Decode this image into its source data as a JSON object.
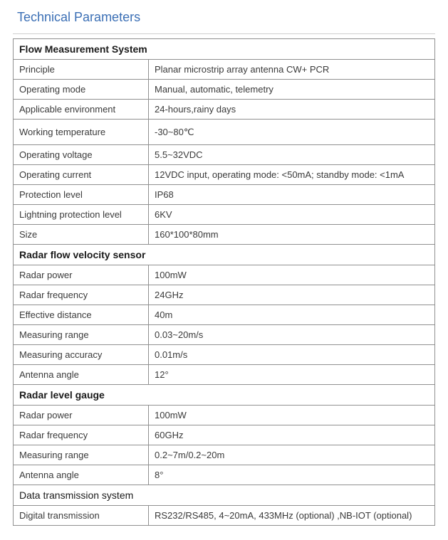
{
  "title": "Technical Parameters",
  "sections": [
    {
      "header": "Flow Measurement System",
      "rows": [
        {
          "label": "Principle",
          "value": "Planar microstrip array antenna CW+ PCR"
        },
        {
          "label": "Operating mode",
          "value": "Manual, automatic, telemetry"
        },
        {
          "label": "Applicable environment",
          "value": "24-hours,rainy days"
        },
        {
          "label": "Working temperature",
          "value": "-30~80℃",
          "tall": true
        },
        {
          "label": "Operating voltage",
          "value": "5.5~32VDC"
        },
        {
          "label": "Operating current",
          "value": "12VDC input, operating mode: <50mA; standby mode: <1mA"
        },
        {
          "label": "Protection level",
          "value": "IP68"
        },
        {
          "label": "Lightning protection level",
          "value": "6KV"
        },
        {
          "label": "Size",
          "value": "160*100*80mm"
        }
      ]
    },
    {
      "header": "Radar flow velocity sensor",
      "rows": [
        {
          "label": "Radar power",
          "value": "100mW"
        },
        {
          "label": "Radar frequency",
          "value": "24GHz"
        },
        {
          "label": "Effective distance",
          "value": "40m"
        },
        {
          "label": "Measuring range",
          "value": "0.03~20m/s"
        },
        {
          "label": "Measuring accuracy",
          "value": "0.01m/s"
        },
        {
          "label": "Antenna angle",
          "value": "12°"
        }
      ]
    },
    {
      "header": "Radar level gauge",
      "rows": [
        {
          "label": "Radar power",
          "value": "100mW"
        },
        {
          "label": "Radar frequency",
          "value": "60GHz"
        },
        {
          "label": "Measuring range",
          "value": "0.2~7m/0.2~20m"
        },
        {
          "label": "Antenna angle",
          "value": "8°"
        }
      ]
    },
    {
      "header": "Data transmission system",
      "header_normal": true,
      "rows": [
        {
          "label": "Digital transmission",
          "value": "RS232/RS485,  4~20mA,  433MHz  (optional)  ,NB-IOT  (optional)"
        }
      ]
    }
  ],
  "colors": {
    "title": "#3b6fb5",
    "border": "#909090",
    "text": "#2a2a2a"
  }
}
